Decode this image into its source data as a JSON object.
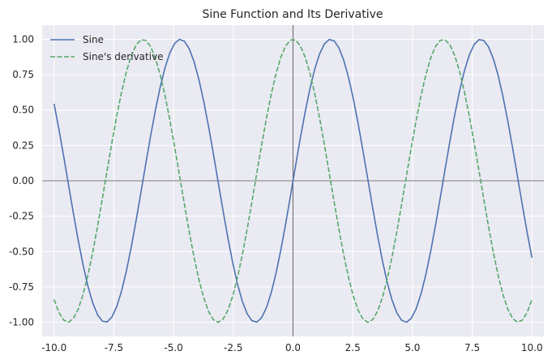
{
  "chart_data": {
    "type": "line",
    "title": "Sine Function and Its Derivative",
    "xlabel": "",
    "ylabel": "",
    "xlim": [
      -10.5,
      10.5
    ],
    "ylim": [
      -1.1,
      1.1
    ],
    "x_ticks": [
      -10,
      -7.5,
      -5,
      -2.5,
      0,
      2.5,
      5,
      7.5,
      10
    ],
    "x_tick_labels": [
      "-10.0",
      "-7.5",
      "-5.0",
      "-2.5",
      "0.0",
      "2.5",
      "5.0",
      "7.5",
      "10.0"
    ],
    "y_ticks": [
      1,
      0.75,
      0.5,
      0.25,
      0,
      -0.25,
      -0.5,
      -0.75,
      -1
    ],
    "y_tick_labels": [
      "1.00",
      "0.75",
      "0.50",
      "0.25",
      "0.00",
      "-0.25",
      "-0.50",
      "-0.75",
      "-1.00"
    ],
    "grid": true,
    "legend_position": "top-left",
    "axis_lines_at_zero": true,
    "x_range": [
      -10,
      10
    ],
    "sample_count": 100,
    "series": [
      {
        "name": "Sine",
        "function": "sin(x)",
        "color": "#4c72b0",
        "style": "solid"
      },
      {
        "name": "Sine's derivative",
        "function": "cos(x)",
        "color": "#55a868",
        "style": "dashed"
      }
    ],
    "colors": {
      "plot_background": "#eaeaf2",
      "grid": "#ffffff",
      "zero_axis": "#000000",
      "text": "#262626"
    }
  }
}
